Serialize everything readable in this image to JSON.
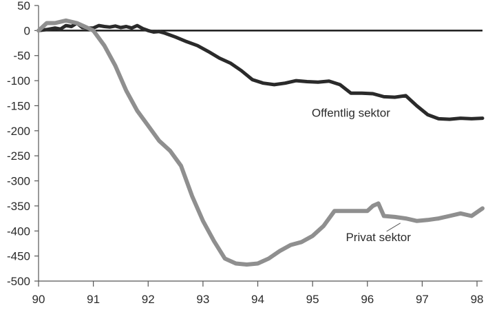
{
  "chart_data": {
    "type": "line",
    "title": "",
    "xlabel": "",
    "ylabel": "",
    "xlim": [
      90,
      98.1
    ],
    "ylim": [
      -500,
      50
    ],
    "x_ticks": [
      90,
      91,
      92,
      93,
      94,
      95,
      96,
      97,
      98
    ],
    "x_tick_labels": [
      "90",
      "91",
      "92",
      "93",
      "94",
      "95",
      "96",
      "97",
      "98"
    ],
    "y_ticks": [
      50,
      0,
      -50,
      -100,
      -150,
      -200,
      -250,
      -300,
      -350,
      -400,
      -450,
      -500
    ],
    "y_tick_labels": [
      "50",
      "0",
      "-50",
      "-100",
      "-150",
      "-200",
      "-250",
      "-300",
      "-350",
      "-400",
      "-450",
      "-500"
    ],
    "zero_line": true,
    "grid": false,
    "legend": "none",
    "series": [
      {
        "name": "Offentlig sektor",
        "color": "#2a2a2a",
        "x": [
          90,
          90.15,
          90.3,
          90.4,
          90.5,
          90.6,
          90.7,
          90.8,
          90.9,
          91,
          91.1,
          91.2,
          91.3,
          91.4,
          91.5,
          91.6,
          91.7,
          91.8,
          91.9,
          92,
          92.1,
          92.2,
          92.3,
          92.5,
          92.7,
          92.9,
          93.1,
          93.3,
          93.5,
          93.7,
          93.9,
          94.1,
          94.3,
          94.5,
          94.7,
          94.9,
          95.1,
          95.3,
          95.5,
          95.7,
          95.9,
          96.1,
          96.3,
          96.5,
          96.7,
          96.9,
          97.1,
          97.3,
          97.5,
          97.7,
          97.9,
          98.1
        ],
        "values": [
          0,
          2,
          5,
          3,
          10,
          8,
          15,
          6,
          5,
          5,
          10,
          8,
          7,
          9,
          6,
          8,
          5,
          10,
          4,
          0,
          -3,
          -2,
          -5,
          -13,
          -22,
          -30,
          -42,
          -55,
          -65,
          -80,
          -98,
          -105,
          -108,
          -105,
          -100,
          -102,
          -103,
          -101,
          -108,
          -125,
          -125,
          -126,
          -132,
          -133,
          -130,
          -150,
          -168,
          -176,
          -177,
          -175,
          -176,
          -175
        ]
      },
      {
        "name": "Privat sektor",
        "color": "#8f8f8f",
        "x": [
          90,
          90.15,
          90.3,
          90.5,
          90.7,
          90.9,
          91,
          91.1,
          91.2,
          91.4,
          91.6,
          91.8,
          92,
          92.2,
          92.4,
          92.6,
          92.8,
          93,
          93.2,
          93.4,
          93.6,
          93.8,
          94,
          94.2,
          94.4,
          94.6,
          94.8,
          95,
          95.2,
          95.4,
          95.6,
          95.8,
          96,
          96.1,
          96.2,
          96.3,
          96.5,
          96.7,
          96.9,
          97.1,
          97.3,
          97.5,
          97.7,
          97.9,
          98.1
        ],
        "values": [
          0,
          15,
          15,
          20,
          15,
          5,
          0,
          -15,
          -30,
          -70,
          -120,
          -160,
          -190,
          -220,
          -240,
          -270,
          -330,
          -380,
          -420,
          -455,
          -465,
          -467,
          -465,
          -455,
          -440,
          -428,
          -422,
          -410,
          -390,
          -360,
          -360,
          -360,
          -360,
          -350,
          -345,
          -370,
          -372,
          -375,
          -380,
          -378,
          -375,
          -370,
          -365,
          -370,
          -355
        ]
      }
    ],
    "annotations": [
      {
        "text": "Offentlig sektor",
        "x": 95.7,
        "y": -172
      },
      {
        "text": "Privat sektor",
        "x": 96.2,
        "y": -420
      }
    ]
  }
}
